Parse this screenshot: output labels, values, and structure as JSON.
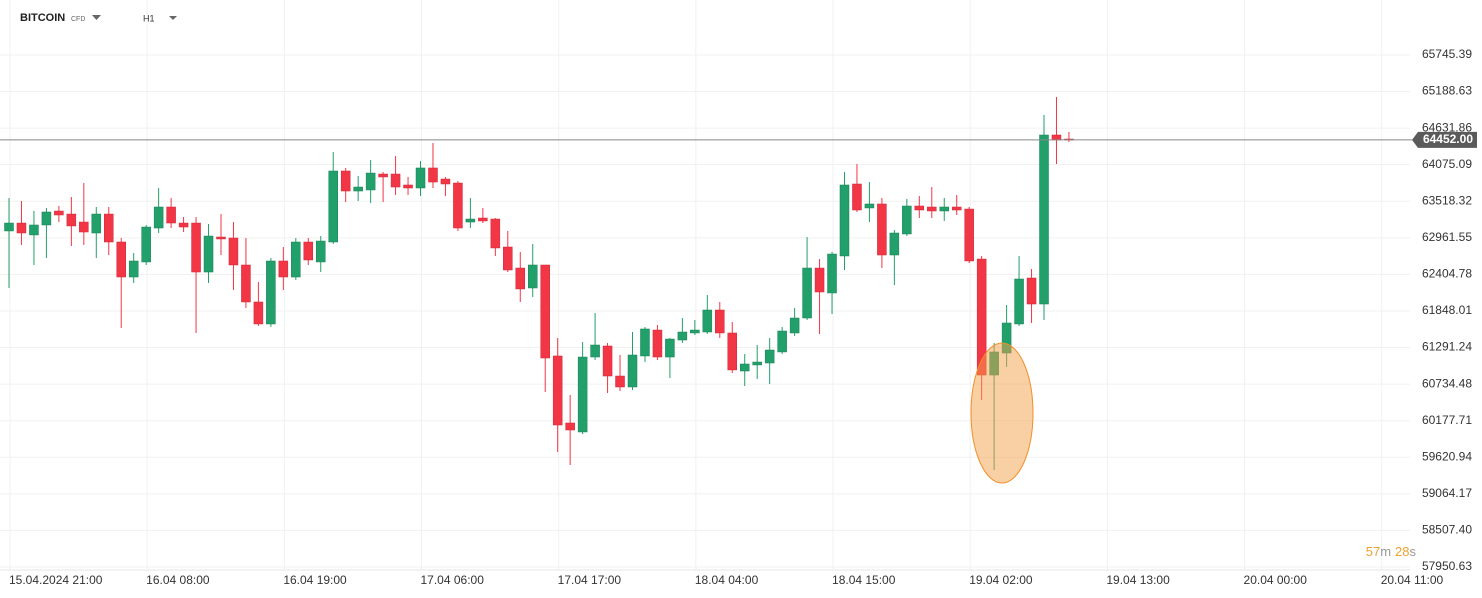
{
  "chart_data": {
    "type": "candlestick",
    "symbol": "BITCOIN",
    "instrument_type": "CFD",
    "timeframe": "H1",
    "countdown": {
      "minutes": "57",
      "minutes_unit": "m",
      "seconds": "28",
      "seconds_unit": "s"
    },
    "up_color": "#22a06b",
    "down_color": "#f23645",
    "open": [
      63066,
      63187,
      63005,
      63157,
      63370,
      63324,
      63202,
      63035,
      63324,
      62898,
      62365,
      62594,
      63111,
      63431,
      63187,
      63187,
      62441,
      62974,
      62959,
      62548,
      61985,
      61650,
      62609,
      62365,
      62898,
      62594,
      62898,
      63979,
      63674,
      63690,
      63933,
      63933,
      63766,
      63720,
      64025,
      63857,
      63796,
      63202,
      63263,
      63248,
      62822,
      62502,
      62198,
      62548,
      61163,
      60143,
      60006,
      61147,
      61315,
      60858,
      60691,
      61163,
      61558,
      61147,
      61406,
      61513,
      61528,
      61863,
      61513,
      60934,
      61026,
      61056,
      61224,
      61513,
      61741,
      62502,
      62122,
      62685,
      63781,
      63416,
      63477,
      62700,
      63020,
      63446,
      63431,
      63370,
      63431,
      63400,
      62639,
      60873,
      61208,
      61650,
      62350,
      61954,
      64527,
      64466
    ],
    "high": [
      63568,
      63522,
      63370,
      63416,
      63446,
      63583,
      63796,
      63431,
      63431,
      62959,
      62731,
      63157,
      63720,
      63568,
      63279,
      63279,
      63172,
      63324,
      63202,
      62959,
      62289,
      62654,
      62822,
      62959,
      62959,
      62989,
      64268,
      64025,
      63903,
      64146,
      63964,
      64207,
      63888,
      64131,
      64405,
      63888,
      63827,
      63568,
      63416,
      63263,
      63066,
      62746,
      62868,
      62548,
      61437,
      60569,
      61376,
      61817,
      61361,
      61178,
      61528,
      61604,
      61635,
      61437,
      61741,
      61711,
      62091,
      61985,
      61680,
      61193,
      61330,
      61437,
      61604,
      61893,
      62974,
      62639,
      62746,
      63964,
      64085,
      63811,
      63568,
      63081,
      63553,
      63598,
      63735,
      63568,
      63614,
      63431,
      62685,
      61361,
      61939,
      62685,
      62487,
      64831,
      65105,
      64573
    ],
    "low": [
      62198,
      62853,
      62548,
      62654,
      63202,
      62837,
      62853,
      62654,
      62700,
      61589,
      62274,
      62548,
      63035,
      63111,
      63050,
      61513,
      62274,
      62700,
      62167,
      61893,
      61619,
      61604,
      62167,
      62320,
      62548,
      62441,
      62868,
      63507,
      63522,
      63492,
      63507,
      63614,
      63614,
      63598,
      63720,
      63598,
      63066,
      63111,
      63187,
      62685,
      62441,
      61985,
      62061,
      60615,
      59701,
      59503,
      59975,
      61102,
      60599,
      60630,
      60645,
      61071,
      61102,
      60828,
      61361,
      61482,
      61498,
      61437,
      60904,
      60706,
      60812,
      60736,
      61193,
      61467,
      61711,
      61498,
      61802,
      62472,
      63355,
      63202,
      62502,
      62243,
      62989,
      63263,
      63263,
      63218,
      63309,
      62578,
      60493,
      59427,
      60995,
      61619,
      61665,
      61711,
      64085,
      64420
    ],
    "close": [
      63187,
      63035,
      63157,
      63355,
      63309,
      63142,
      63050,
      63324,
      62898,
      62365,
      62609,
      63126,
      63431,
      63187,
      63126,
      62441,
      62989,
      62944,
      62548,
      61985,
      61650,
      62609,
      62365,
      62898,
      62624,
      62913,
      63979,
      63674,
      63735,
      63948,
      63888,
      63735,
      63720,
      64025,
      63811,
      63781,
      63111,
      63248,
      63218,
      62807,
      62472,
      62183,
      62548,
      61132,
      60112,
      60036,
      61147,
      61330,
      60858,
      60691,
      61178,
      61574,
      61147,
      61421,
      61528,
      61558,
      61863,
      61513,
      60950,
      61041,
      61071,
      61254,
      61543,
      61741,
      62502,
      62137,
      62715,
      63766,
      63385,
      63477,
      62700,
      63035,
      63446,
      63385,
      63370,
      63431,
      63385,
      62609,
      60873,
      61224,
      61665,
      62335,
      61954,
      64527,
      64451,
      64452
    ],
    "x_labels": [
      "15.04.2024 21:00",
      "16.04 08:00",
      "16.04 19:00",
      "17.04 06:00",
      "17.04 17:00",
      "18.04 04:00",
      "18.04 15:00",
      "19.04 02:00",
      "19.04 13:00",
      "20.04 00:00",
      "20.04 11:00"
    ],
    "ylim": [
      57905,
      66582
    ],
    "yticks": [
      65745.39,
      65188.63,
      64631.86,
      64075.09,
      63518.32,
      62961.55,
      62404.78,
      61848.01,
      61291.24,
      60734.48,
      60177.71,
      59620.94,
      59064.17,
      {
        "value": 58507.4,
        "label": "58507.40"
      },
      57950.63
    ],
    "last_price": {
      "value": 64452,
      "label": "64452.00"
    },
    "grid": true
  }
}
